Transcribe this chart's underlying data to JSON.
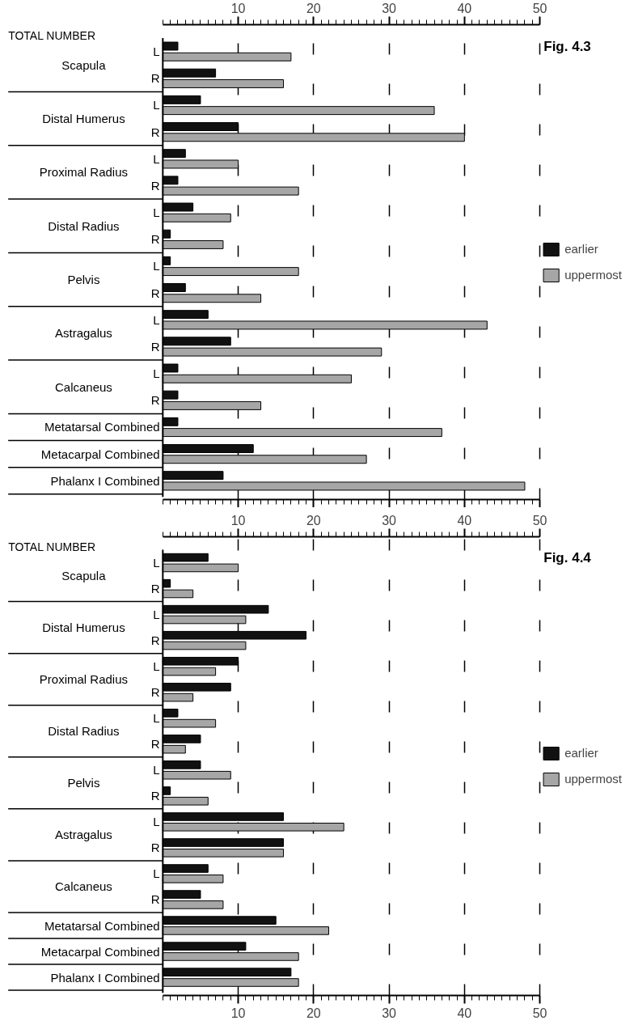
{
  "chart_data": [
    {
      "type": "bar",
      "orientation": "horizontal",
      "title": "Fig. 4.3",
      "xlabel": "TOTAL NUMBER",
      "categories": [
        "L",
        "R",
        "L",
        "R",
        "L",
        "R",
        "L",
        "R",
        "L",
        "R",
        "L",
        "R",
        "L",
        "R",
        "Metatarsal Combined",
        "Metacarpal Combined",
        "Phalanx I Combined"
      ],
      "annotations": [
        "Scapula",
        "Distal Humerus",
        "Proximal Radius",
        "Distal Radius",
        "Pelvis",
        "Astragalus",
        "Calcaneus"
      ],
      "series": [
        {
          "name": "earlier",
          "color": "#111111",
          "axis": "x2",
          "values": [
            2,
            7,
            5,
            10,
            3,
            2,
            4,
            1,
            1,
            3,
            6,
            9,
            2,
            2,
            2,
            12,
            8
          ]
        },
        {
          "name": "uppermost",
          "color": "#a6a6a6",
          "axis": "x2",
          "values": [
            17,
            16,
            36,
            40,
            10,
            18,
            9,
            8,
            18,
            13,
            43,
            29,
            25,
            13,
            37,
            27,
            48
          ]
        }
      ],
      "x2lim": [
        0,
        50
      ],
      "x2ticks": [
        10,
        20,
        30,
        40,
        50
      ],
      "grid": "x",
      "legend": "right"
    },
    {
      "type": "bar",
      "orientation": "horizontal",
      "title": "Fig. 4.4",
      "xlabel": "TOTAL NUMBER",
      "categories": [
        "L",
        "R",
        "L",
        "R",
        "L",
        "R",
        "L",
        "R",
        "L",
        "R",
        "L",
        "R",
        "L",
        "R",
        "Metatarsal Combined",
        "Metacarpal Combined",
        "Phalanx I Combined"
      ],
      "annotations": [
        "Scapula",
        "Distal Humerus",
        "Proximal Radius",
        "Distal Radius",
        "Pelvis",
        "Astragalus",
        "Calcaneus"
      ],
      "series": [
        {
          "name": "earlier",
          "color": "#111111",
          "values": [
            6,
            1,
            14,
            19,
            10,
            9,
            2,
            5,
            5,
            1,
            16,
            16,
            6,
            5,
            15,
            11,
            17
          ]
        },
        {
          "name": "uppermost",
          "color": "#a6a6a6",
          "values": [
            10,
            4,
            11,
            11,
            7,
            4,
            7,
            3,
            9,
            6,
            24,
            16,
            8,
            8,
            22,
            18,
            18
          ]
        }
      ],
      "xlim": [
        0,
        50
      ],
      "xticks": [
        10,
        20,
        30,
        40,
        50
      ],
      "x2lim": [
        0,
        50
      ],
      "x2ticks": [
        10,
        20,
        30,
        40,
        50
      ],
      "grid": "x",
      "legend": "right"
    }
  ]
}
